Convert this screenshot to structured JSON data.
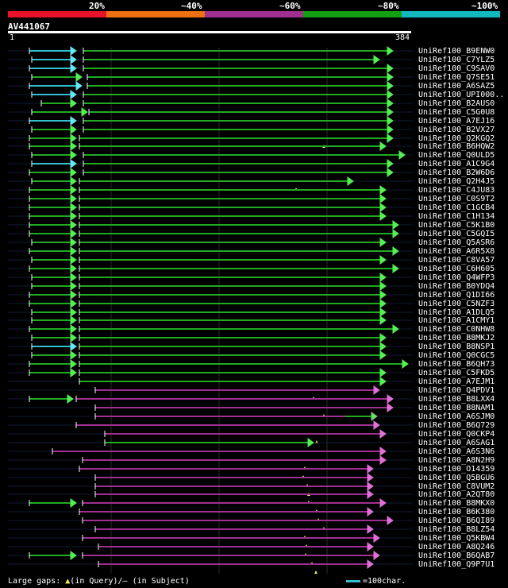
{
  "legend": {
    "colors": [
      "#e8132b",
      "#ee7012",
      "#a0308f",
      "#12a012",
      "#12b8c0"
    ],
    "labels": [
      "20%",
      "~40%",
      "~60%",
      "~80%",
      "~100%"
    ]
  },
  "query": {
    "title": "AV441067",
    "start": "1",
    "end": "384"
  },
  "hits": [
    {
      "name": "UniRef100_B9ENW0",
      "color": "green",
      "bar": [
        105,
        495
      ],
      "pre": [
        37,
        96
      ],
      "pre_color": "cyan"
    },
    {
      "name": "UniRef100_C7YLZ5",
      "color": "green",
      "bar": [
        105,
        478
      ],
      "pre": [
        40,
        96
      ],
      "pre_color": "cyan"
    },
    {
      "name": "UniRef100_C9SAV0",
      "color": "green",
      "bar": [
        105,
        495
      ],
      "pre": [
        37,
        96
      ],
      "pre_color": "cyan"
    },
    {
      "name": "UniRef100_Q7SE51",
      "color": "green",
      "bar": [
        110,
        495
      ],
      "pre": [
        40,
        103
      ],
      "pre_color": "green"
    },
    {
      "name": "UniRef100_A6SAZ5",
      "color": "green",
      "bar": [
        110,
        495
      ],
      "pre": [
        37,
        103
      ],
      "pre_color": "cyan"
    },
    {
      "name": "UniRef100_UPI000..",
      "color": "green",
      "bar": [
        105,
        495
      ],
      "pre": [
        40,
        96
      ],
      "pre_color": "cyan"
    },
    {
      "name": "UniRef100_B2AUS0",
      "color": "green",
      "bar": [
        105,
        495
      ],
      "pre": [
        52,
        96
      ],
      "pre_color": "green"
    },
    {
      "name": "UniRef100_C5G0U8",
      "color": "green",
      "bar": [
        112,
        495
      ],
      "pre": [
        40,
        110
      ],
      "pre_color": "green"
    },
    {
      "name": "UniRef100_A7EJ16",
      "color": "green",
      "bar": [
        105,
        495
      ],
      "pre": [
        37,
        96
      ],
      "pre_color": "cyan"
    },
    {
      "name": "UniRef100_B2VX27",
      "color": "green",
      "bar": [
        105,
        495
      ],
      "pre": [
        40,
        96
      ],
      "pre_color": "green"
    },
    {
      "name": "UniRef100_Q2KGQ2",
      "color": "green",
      "bar": [
        100,
        495
      ],
      "pre": [
        37,
        96
      ],
      "pre_color": "green",
      "gap": 408
    },
    {
      "name": "UniRef100_B6HQW2",
      "color": "green",
      "bar": [
        100,
        486
      ],
      "pre": [
        37,
        96
      ],
      "pre_color": "green"
    },
    {
      "name": "UniRef100_Q0ULD5",
      "color": "green",
      "bar": [
        105,
        510
      ],
      "pre": [
        40,
        96
      ],
      "pre_color": "green"
    },
    {
      "name": "UniRef100_A1C9G4",
      "color": "green",
      "bar": [
        105,
        495
      ],
      "pre": [
        40,
        96
      ],
      "pre_color": "cyan"
    },
    {
      "name": "UniRef100_B2W6D6",
      "color": "green",
      "bar": [
        105,
        495
      ],
      "pre": [
        37,
        96
      ],
      "pre_color": "green"
    },
    {
      "name": "UniRef100_Q2H4J5",
      "color": "green",
      "bar": [
        100,
        445
      ],
      "pre": [
        40,
        96
      ],
      "pre_color": "green",
      "gap": 373
    },
    {
      "name": "UniRef100_C4JU83",
      "color": "green",
      "bar": [
        100,
        486
      ],
      "pre": [
        37,
        96
      ],
      "pre_color": "green"
    },
    {
      "name": "UniRef100_C0S9T2",
      "color": "green",
      "bar": [
        100,
        486
      ],
      "pre": [
        37,
        96
      ],
      "pre_color": "green"
    },
    {
      "name": "UniRef100_C1GCB4",
      "color": "green",
      "bar": [
        100,
        486
      ],
      "pre": [
        37,
        96
      ],
      "pre_color": "green"
    },
    {
      "name": "UniRef100_C1H134",
      "color": "green",
      "bar": [
        100,
        486
      ],
      "pre": [
        37,
        96
      ],
      "pre_color": "green"
    },
    {
      "name": "UniRef100_C5K1B0",
      "color": "green",
      "bar": [
        100,
        502
      ],
      "pre": [
        37,
        96
      ],
      "pre_color": "green"
    },
    {
      "name": "UniRef100_C5GQI5",
      "color": "green",
      "bar": [
        100,
        502
      ],
      "pre": [
        37,
        96
      ],
      "pre_color": "green"
    },
    {
      "name": "UniRef100_Q5ASR6",
      "color": "green",
      "bar": [
        100,
        486
      ],
      "pre": [
        40,
        96
      ],
      "pre_color": "green"
    },
    {
      "name": "UniRef100_A6R5X8",
      "color": "green",
      "bar": [
        100,
        502
      ],
      "pre": [
        37,
        96
      ],
      "pre_color": "green"
    },
    {
      "name": "UniRef100_C8VA57",
      "color": "green",
      "bar": [
        100,
        486
      ],
      "pre": [
        40,
        96
      ],
      "pre_color": "green"
    },
    {
      "name": "UniRef100_C6H605",
      "color": "green",
      "bar": [
        100,
        502
      ],
      "pre": [
        37,
        96
      ],
      "pre_color": "green"
    },
    {
      "name": "UniRef100_Q4WFP3",
      "color": "green",
      "bar": [
        100,
        486
      ],
      "pre": [
        40,
        96
      ],
      "pre_color": "green"
    },
    {
      "name": "UniRef100_B0YDQ4",
      "color": "green",
      "bar": [
        100,
        486
      ],
      "pre": [
        40,
        96
      ],
      "pre_color": "green"
    },
    {
      "name": "UniRef100_Q1DI66",
      "color": "green",
      "bar": [
        100,
        486
      ],
      "pre": [
        37,
        96
      ],
      "pre_color": "green"
    },
    {
      "name": "UniRef100_C5NZF3",
      "color": "green",
      "bar": [
        100,
        486
      ],
      "pre": [
        37,
        96
      ],
      "pre_color": "green"
    },
    {
      "name": "UniRef100_A1DLQ5",
      "color": "green",
      "bar": [
        100,
        486
      ],
      "pre": [
        40,
        96
      ],
      "pre_color": "green"
    },
    {
      "name": "UniRef100_A1CMY1",
      "color": "green",
      "bar": [
        100,
        486
      ],
      "pre": [
        40,
        96
      ],
      "pre_color": "green"
    },
    {
      "name": "UniRef100_C0NHW8",
      "color": "green",
      "bar": [
        100,
        502
      ],
      "pre": [
        37,
        96
      ],
      "pre_color": "green"
    },
    {
      "name": "UniRef100_B8MKJ2",
      "color": "green",
      "bar": [
        100,
        486
      ],
      "pre": [
        40,
        96
      ],
      "pre_color": "green"
    },
    {
      "name": "UniRef100_B8NSP1",
      "color": "green",
      "bar": [
        100,
        486
      ],
      "pre": [
        40,
        96
      ],
      "pre_color": "cyan"
    },
    {
      "name": "UniRef100_Q0CGC5",
      "color": "green",
      "bar": [
        100,
        486
      ],
      "pre": [
        40,
        96
      ],
      "pre_color": "green"
    },
    {
      "name": "UniRef100_B6QH73",
      "color": "green",
      "bar": [
        100,
        514
      ],
      "pre": [
        37,
        96
      ],
      "pre_color": "green"
    },
    {
      "name": "UniRef100_C5FKD5",
      "color": "green",
      "bar": [
        100,
        486
      ],
      "pre": [
        37,
        96
      ],
      "pre_color": "green"
    },
    {
      "name": "UniRef100_A7EJM1",
      "color": "green",
      "bar": [
        100,
        486
      ]
    },
    {
      "name": "UniRef100_Q4PDV1",
      "color": "purple",
      "bar": [
        120,
        478
      ],
      "gap": 395
    },
    {
      "name": "UniRef100_B8LXX4",
      "color": "purple",
      "bar": [
        96,
        495
      ],
      "pre": [
        37,
        92
      ],
      "pre_color": "green"
    },
    {
      "name": "UniRef100_B8NAM1",
      "color": "purple",
      "bar": [
        120,
        495
      ],
      "gap": 408
    },
    {
      "name": "UniRef100_A6SJM0",
      "color": "purple",
      "bar": [
        120,
        475
      ],
      "tail": "green"
    },
    {
      "name": "UniRef100_B6Q729",
      "color": "purple",
      "bar": [
        96,
        478
      ]
    },
    {
      "name": "UniRef100_Q0CKP4",
      "color": "purple",
      "bar": [
        132,
        486
      ],
      "gap": 399
    },
    {
      "name": "UniRef100_A6SAG1",
      "color": "green",
      "bar": [
        132,
        395
      ]
    },
    {
      "name": "UniRef100_A6S3N6",
      "color": "purple",
      "bar": [
        66,
        486
      ]
    },
    {
      "name": "UniRef100_A8N2H9",
      "color": "purple",
      "bar": [
        104,
        486
      ],
      "gap": 384
    },
    {
      "name": "UniRef100_O14359",
      "color": "purple",
      "bar": [
        100,
        470
      ],
      "gap": 382
    },
    {
      "name": "UniRef100_Q5BGU6",
      "color": "purple",
      "bar": [
        120,
        470
      ],
      "gap": 387
    },
    {
      "name": "UniRef100_C8VUM2",
      "color": "purple",
      "bar": [
        120,
        470
      ],
      "gap": 389
    },
    {
      "name": "UniRef100_A2QT80",
      "color": "purple",
      "bar": [
        120,
        470
      ],
      "gap": 389
    },
    {
      "name": "UniRef100_B8MKX0",
      "color": "purple",
      "bar": [
        104,
        486
      ],
      "gap": 399,
      "pre": [
        37,
        96
      ],
      "pre_color": "green"
    },
    {
      "name": "UniRef100_B6K380",
      "color": "purple",
      "bar": [
        100,
        470
      ],
      "gap": 401
    },
    {
      "name": "UniRef100_B6QI89",
      "color": "purple",
      "bar": [
        104,
        495
      ],
      "gap": 408
    },
    {
      "name": "UniRef100_B8LZ54",
      "color": "purple",
      "bar": [
        120,
        470
      ],
      "gap": 384
    },
    {
      "name": "UniRef100_Q5KBW4",
      "color": "purple",
      "bar": [
        104,
        478
      ],
      "gap": 386
    },
    {
      "name": "UniRef100_A8Q246",
      "color": "purple",
      "bar": [
        124,
        470
      ],
      "gap": 385
    },
    {
      "name": "UniRef100_B6QAB7",
      "color": "purple",
      "bar": [
        104,
        478
      ],
      "gap": 393,
      "pre": [
        37,
        96
      ],
      "pre_color": "green"
    },
    {
      "name": "UniRef100_Q9P7U1",
      "color": "purple",
      "bar": [
        124,
        470
      ],
      "gap": 398
    }
  ],
  "footer": {
    "gaps_label": "Large gaps:",
    "query_gap": "(in Query)/",
    "subject_gap": "(in Subject)",
    "scale_label": "=100char."
  },
  "palette": {
    "green": "#22aa22",
    "green_head": "#55ee55",
    "purple": "#a0308f",
    "purple_head": "#e070d8",
    "cyan": "#33bfd0",
    "cyan_head": "#66e6f0",
    "gap_marker": "#f0f070"
  }
}
